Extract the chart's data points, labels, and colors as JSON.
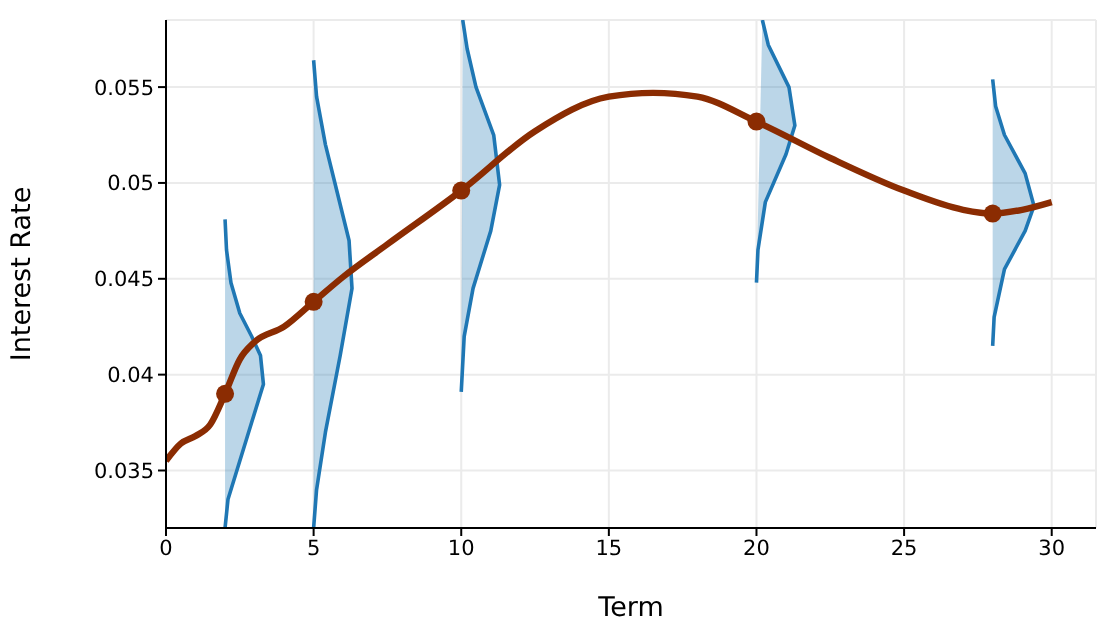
{
  "chart_data": {
    "type": "line",
    "xlabel": "Term",
    "ylabel": "Interest Rate",
    "xlim": [
      0,
      31.5
    ],
    "ylim": [
      0.032,
      0.0585
    ],
    "xticks": [
      0,
      5,
      10,
      15,
      20,
      25,
      30
    ],
    "yticks": [
      0.035,
      0.04,
      0.045,
      0.05,
      0.055
    ],
    "grid": true,
    "series": [
      {
        "type": "area",
        "color": "#1f77b4",
        "x": [
          2.0,
          2.1,
          2.4,
          2.9,
          3.3,
          3.2,
          2.9,
          2.5,
          2.2,
          2.05,
          2.0
        ],
        "values": [
          0.032,
          0.0335,
          0.035,
          0.0375,
          0.0395,
          0.041,
          0.042,
          0.0432,
          0.0448,
          0.0465,
          0.0481
        ]
      },
      {
        "type": "area",
        "color": "#1f77b4",
        "x": [
          5.0,
          5.1,
          5.4,
          5.9,
          6.3,
          6.2,
          5.8,
          5.4,
          5.1,
          5.0
        ],
        "values": [
          0.032,
          0.034,
          0.037,
          0.041,
          0.0445,
          0.047,
          0.0495,
          0.052,
          0.0545,
          0.0564
        ]
      },
      {
        "type": "area",
        "color": "#1f77b4",
        "x": [
          10.0,
          10.1,
          10.4,
          11.0,
          11.3,
          11.1,
          10.5,
          10.2,
          10.05
        ],
        "values": [
          0.0391,
          0.042,
          0.0445,
          0.0475,
          0.0499,
          0.0525,
          0.055,
          0.057,
          0.0585
        ]
      },
      {
        "type": "area",
        "color": "#1f77b4",
        "x": [
          20.0,
          20.05,
          20.3,
          21.0,
          21.3,
          21.1,
          20.4,
          20.2
        ],
        "values": [
          0.0448,
          0.0465,
          0.049,
          0.0515,
          0.053,
          0.055,
          0.0572,
          0.0585
        ]
      },
      {
        "type": "area",
        "color": "#1f77b4",
        "x": [
          28.0,
          28.05,
          28.4,
          29.1,
          29.4,
          29.1,
          28.4,
          28.1,
          28.0
        ],
        "values": [
          0.0415,
          0.043,
          0.0455,
          0.0475,
          0.0488,
          0.0505,
          0.0525,
          0.054,
          0.0554
        ]
      },
      {
        "color": "#8b2c02",
        "x": [
          0,
          0.5,
          1,
          1.5,
          2,
          2.5,
          3,
          4,
          5,
          6,
          7.5,
          10,
          12.5,
          15,
          16.5,
          18,
          20,
          22.5,
          25,
          27,
          28,
          29,
          30
        ],
        "values": [
          0.0355,
          0.0364,
          0.0368,
          0.0374,
          0.039,
          0.0408,
          0.0417,
          0.0425,
          0.0438,
          0.0451,
          0.0468,
          0.0496,
          0.0527,
          0.0545,
          0.0547,
          0.0545,
          0.0532,
          0.0513,
          0.0496,
          0.0486,
          0.0484,
          0.0486,
          0.049
        ]
      },
      {
        "type": "scatter",
        "color": "#8b2c02",
        "x": [
          2,
          5,
          10,
          20,
          28
        ],
        "values": [
          0.039,
          0.0438,
          0.0496,
          0.0532,
          0.0484
        ]
      }
    ]
  }
}
